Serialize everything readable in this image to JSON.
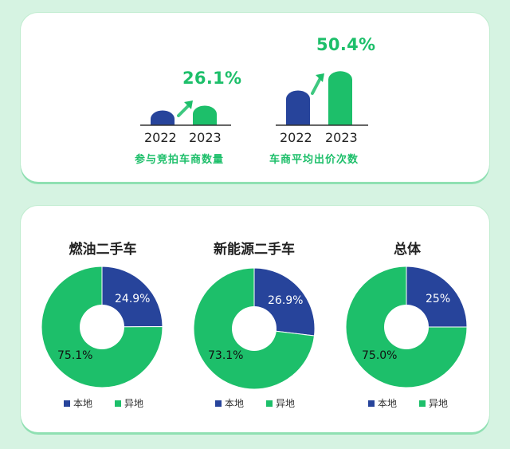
{
  "colors": {
    "local": "#27449b",
    "other": "#1dbf6a",
    "arrow": "#1dbf6a"
  },
  "chart_data": [
    {
      "type": "bar",
      "categories": [
        "2022",
        "2023"
      ],
      "values": [
        1.0,
        1.261
      ],
      "growth_label": "26.1%",
      "title": "参与竞拍车商数量"
    },
    {
      "type": "bar",
      "categories": [
        "2022",
        "2023"
      ],
      "values": [
        1.0,
        1.504
      ],
      "growth_label": "50.4%",
      "title": "车商平均出价次数"
    },
    {
      "type": "pie",
      "title": "燃油二手车",
      "slices": [
        {
          "name": "本地",
          "value": 24.9,
          "label": "24.9%"
        },
        {
          "name": "异地",
          "value": 75.1,
          "label": "75.1%"
        }
      ]
    },
    {
      "type": "pie",
      "title": "新能源二手车",
      "slices": [
        {
          "name": "本地",
          "value": 26.9,
          "label": "26.9%"
        },
        {
          "name": "异地",
          "value": 73.1,
          "label": "73.1%"
        }
      ]
    },
    {
      "type": "pie",
      "title": "总体",
      "slices": [
        {
          "name": "本地",
          "value": 25.0,
          "label": "25%"
        },
        {
          "name": "异地",
          "value": 75.0,
          "label": "75.0%"
        }
      ]
    }
  ],
  "legend": {
    "local": "本地",
    "other": "异地"
  }
}
